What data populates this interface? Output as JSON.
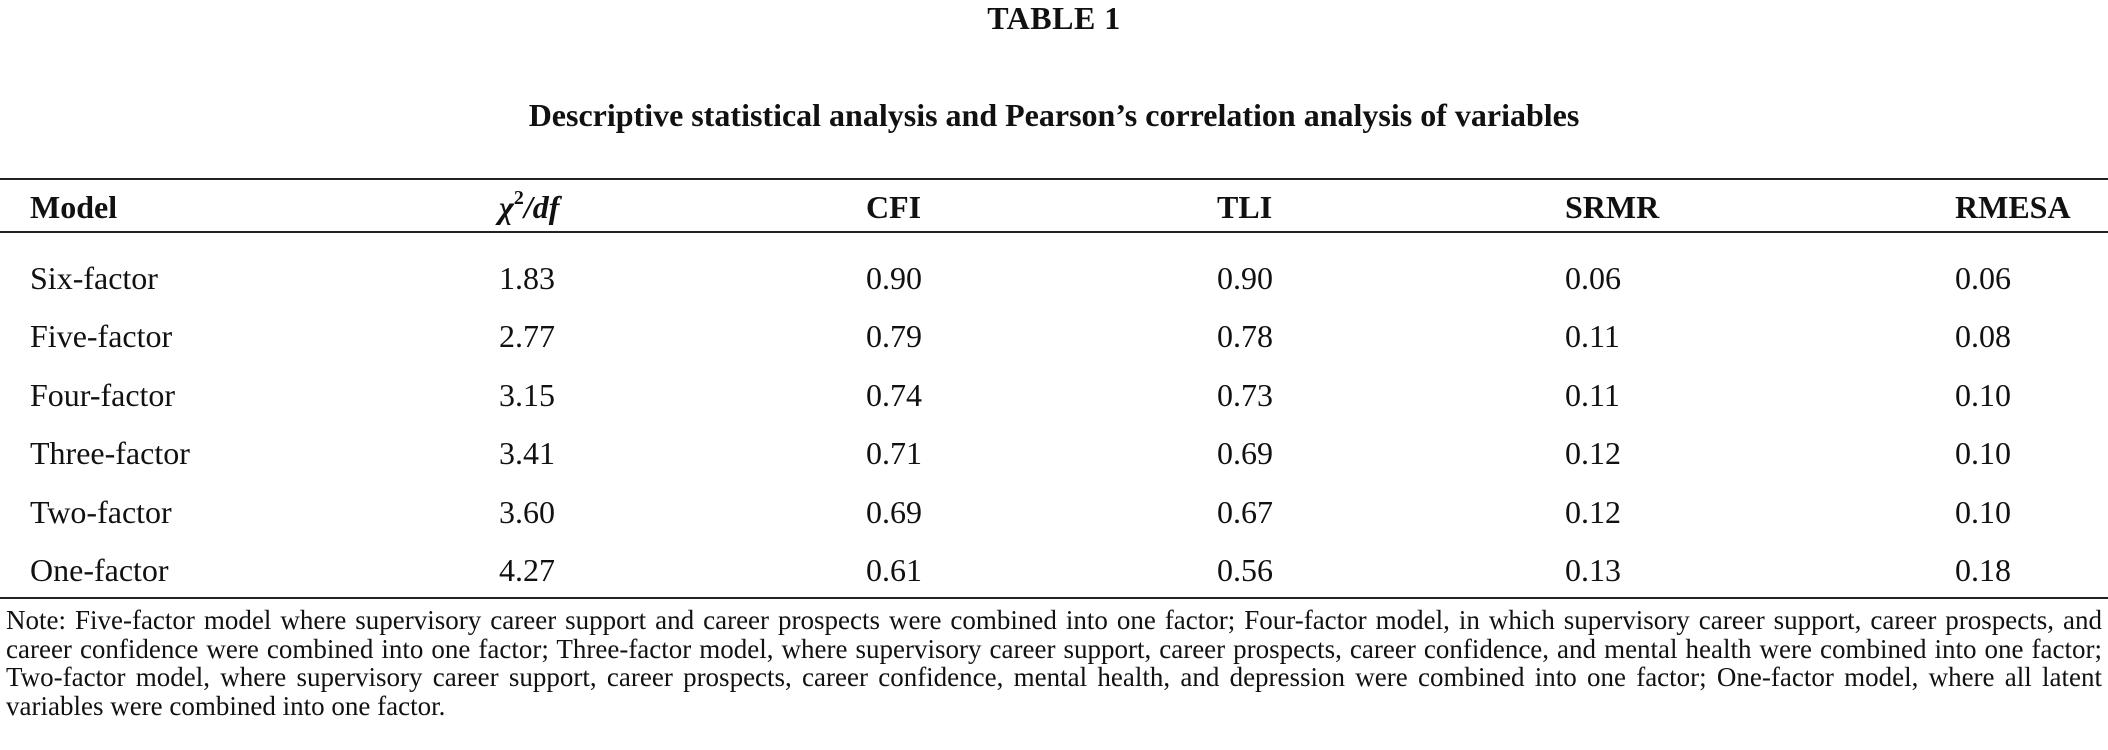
{
  "table": {
    "label": "TABLE 1",
    "caption": "Descriptive statistical analysis and Pearson’s correlation analysis of variables",
    "headers": {
      "model": "Model",
      "chi_base": "χ",
      "chi_sup": "2",
      "chi_rest": "/df",
      "cfi": "CFI",
      "tli": "TLI",
      "srmr": "SRMR",
      "rmesa": "RMESA"
    },
    "rows": [
      {
        "model": "Six-factor",
        "chi2_df": "1.83",
        "cfi": "0.90",
        "tli": "0.90",
        "srmr": "0.06",
        "rmesa": "0.06"
      },
      {
        "model": "Five-factor",
        "chi2_df": "2.77",
        "cfi": "0.79",
        "tli": "0.78",
        "srmr": "0.11",
        "rmesa": "0.08"
      },
      {
        "model": "Four-factor",
        "chi2_df": "3.15",
        "cfi": "0.74",
        "tli": "0.73",
        "srmr": "0.11",
        "rmesa": "0.10"
      },
      {
        "model": "Three-factor",
        "chi2_df": "3.41",
        "cfi": "0.71",
        "tli": "0.69",
        "srmr": "0.12",
        "rmesa": "0.10"
      },
      {
        "model": "Two-factor",
        "chi2_df": "3.60",
        "cfi": "0.69",
        "tli": "0.67",
        "srmr": "0.12",
        "rmesa": "0.10"
      },
      {
        "model": "One-factor",
        "chi2_df": "4.27",
        "cfi": "0.61",
        "tli": "0.56",
        "srmr": "0.13",
        "rmesa": "0.18"
      }
    ],
    "note": "Note: Five-factor model where supervisory career support and career prospects were combined into one factor; Four-factor model, in which supervisory career support, career prospects, and career confidence were combined into one factor; Three-factor model, where supervisory career support, career prospects, career confidence, and mental health were combined into one factor; Two-factor model, where supervisory career support, career prospects, career confidence, mental health, and depression were combined into one factor; One-factor model, where all latent variables were combined into one factor."
  }
}
